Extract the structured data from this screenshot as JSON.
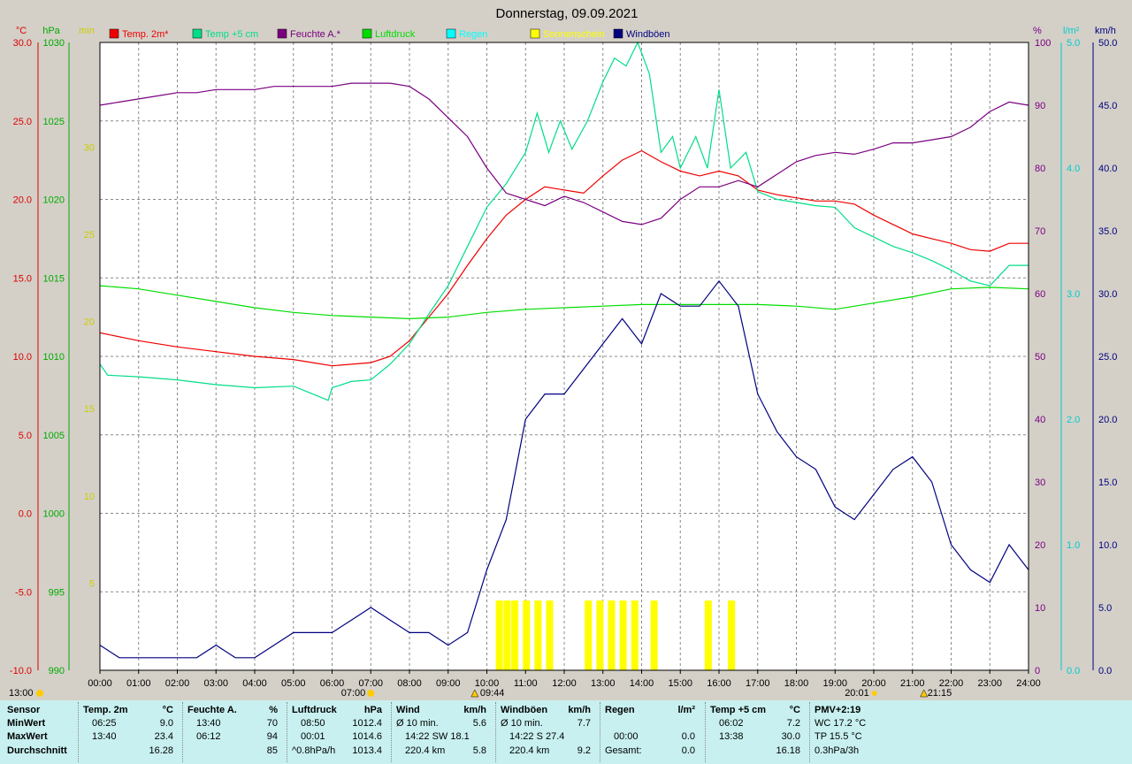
{
  "title": "Donnerstag, 09.09.2021",
  "colors": {
    "temp2m": "#ee0000",
    "temp5cm": "#00dd88",
    "humidity": "#7a0080",
    "pressure": "#00dd00",
    "rain": "#00ffff",
    "sunshine": "#ffff00",
    "gusts": "#000080",
    "background": "#ffffff",
    "grid": "#888888",
    "table_bg": "#c8f0f0"
  },
  "legend": [
    {
      "label": "Temp. 2m*",
      "color": "#ee0000"
    },
    {
      "label": "Temp +5 cm",
      "color": "#00dd88"
    },
    {
      "label": "Feuchte A.*",
      "color": "#7a0080"
    },
    {
      "label": "Luftdruck",
      "color": "#00dd00"
    },
    {
      "label": "Regen",
      "color": "#00ffff"
    },
    {
      "label": "Sonnenschein",
      "color": "#ffff00"
    },
    {
      "label": "Windböen",
      "color": "#000080"
    }
  ],
  "axes": {
    "temp": {
      "unit": "°C",
      "ticks": [
        "30.0",
        "25.0",
        "20.0",
        "15.0",
        "10.0",
        "5.0",
        "0.0",
        "-5.0",
        "-10.0"
      ],
      "range": [
        -10,
        30
      ]
    },
    "pressure": {
      "unit": "hPa",
      "ticks": [
        "1030",
        "1025",
        "1020",
        "1015",
        "1010",
        "1005",
        "1000",
        "995",
        "990"
      ],
      "range": [
        990,
        1030
      ]
    },
    "sunmin": {
      "unit": "min",
      "ticks": [
        "30",
        "25",
        "20",
        "15",
        "10",
        "5"
      ],
      "range": [
        0,
        36
      ]
    },
    "humidity": {
      "unit": "%",
      "ticks": [
        "100",
        "90",
        "80",
        "70",
        "60",
        "50",
        "40",
        "30",
        "20",
        "10",
        "0"
      ],
      "range": [
        0,
        100
      ]
    },
    "rain": {
      "unit": "l/m²",
      "ticks": [
        "5.0",
        "4.0",
        "3.0",
        "2.0",
        "1.0",
        "0.0"
      ],
      "range": [
        0,
        5
      ]
    },
    "wind": {
      "unit": "km/h",
      "ticks": [
        "50.0",
        "45.0",
        "40.0",
        "35.0",
        "30.0",
        "25.0",
        "20.0",
        "15.0",
        "10.0",
        "5.0",
        "0.0"
      ],
      "range": [
        0,
        50
      ]
    },
    "x_ticks": [
      "00:00",
      "01:00",
      "02:00",
      "03:00",
      "04:00",
      "05:00",
      "06:00",
      "07:00",
      "08:00",
      "09:00",
      "10:00",
      "11:00",
      "12:00",
      "13:00",
      "14:00",
      "15:00",
      "16:00",
      "17:00",
      "18:00",
      "19:00",
      "20:00",
      "21:00",
      "22:00",
      "23:00",
      "24:00"
    ]
  },
  "markers": {
    "sunrise": "07:00",
    "sunset": "20:01",
    "moonrise": "09:44",
    "moonset": "21:15",
    "left_time": "13:00"
  },
  "chart_data": {
    "type": "line",
    "title": "Donnerstag, 09.09.2021",
    "x_unit": "hours",
    "series": [
      {
        "name": "Temp. 2m*",
        "axis": "temp",
        "x": [
          0,
          1,
          2,
          3,
          4,
          5,
          5.5,
          6,
          6.5,
          7,
          7.5,
          8,
          8.5,
          9,
          9.5,
          10,
          10.5,
          11,
          11.5,
          12,
          12.5,
          13,
          13.5,
          14,
          14.5,
          15,
          15.5,
          16,
          16.5,
          17,
          17.5,
          18,
          18.5,
          19,
          19.5,
          20,
          20.5,
          21,
          21.5,
          22,
          22.5,
          23,
          23.5,
          24
        ],
        "y": [
          11.5,
          11,
          10.6,
          10.3,
          10,
          9.8,
          9.6,
          9.4,
          9.5,
          9.6,
          10,
          11,
          12.5,
          14,
          15.8,
          17.5,
          19,
          20,
          20.8,
          20.6,
          20.4,
          21.5,
          22.5,
          23.1,
          22.4,
          21.8,
          21.5,
          21.8,
          21.5,
          20.6,
          20.3,
          20.1,
          19.9,
          19.9,
          19.7,
          19,
          18.4,
          17.8,
          17.5,
          17.2,
          16.8,
          16.7,
          17.2,
          17.2
        ]
      },
      {
        "name": "Temp +5 cm",
        "axis": "temp",
        "x": [
          0,
          0.2,
          1,
          2,
          3,
          4,
          5,
          5.9,
          6,
          6.5,
          7,
          7.5,
          8,
          8.5,
          9,
          9.5,
          10,
          10.5,
          11,
          11.3,
          11.6,
          11.9,
          12.2,
          12.6,
          13,
          13.3,
          13.6,
          13.9,
          14.2,
          14.5,
          14.8,
          15,
          15.4,
          15.7,
          16,
          16.3,
          16.7,
          17,
          17.5,
          18,
          18.5,
          19,
          19.5,
          20,
          20.5,
          21,
          21.5,
          22,
          22.5,
          23,
          23.5,
          24
        ],
        "y": [
          9.5,
          8.8,
          8.7,
          8.5,
          8.2,
          8,
          8.1,
          7.2,
          8,
          8.4,
          8.5,
          9.5,
          10.8,
          12.7,
          14.5,
          17,
          19.5,
          21,
          23,
          25.5,
          23,
          25,
          23.2,
          25,
          27.5,
          29,
          28.5,
          30,
          28,
          23,
          24,
          22,
          24,
          22,
          27,
          22,
          23,
          20.5,
          20,
          19.8,
          19.6,
          19.5,
          18.2,
          17.6,
          17,
          16.6,
          16.1,
          15.5,
          14.8,
          14.5,
          15.8,
          15.8
        ]
      },
      {
        "name": "Feuchte A.*",
        "axis": "humidity",
        "x": [
          0,
          0.5,
          1,
          1.5,
          2,
          2.5,
          3,
          3.5,
          4,
          4.5,
          5,
          5.5,
          6,
          6.5,
          7,
          7.5,
          8,
          8.5,
          9,
          9.5,
          10,
          10.5,
          11,
          11.5,
          12,
          12.5,
          13,
          13.5,
          14,
          14.5,
          15,
          15.5,
          16,
          16.5,
          17,
          17.5,
          18,
          18.5,
          19,
          19.5,
          20,
          20.5,
          21,
          21.5,
          22,
          22.5,
          23,
          23.5,
          24
        ],
        "y": [
          90,
          90.5,
          91,
          91.5,
          92,
          92,
          92.5,
          92.5,
          92.5,
          93,
          93,
          93,
          93,
          93.5,
          93.5,
          93.5,
          93,
          91,
          88,
          85,
          80,
          76,
          75,
          74,
          75.5,
          74.5,
          73,
          71.5,
          71,
          72,
          75,
          77,
          77,
          78,
          77,
          79,
          81,
          82,
          82.5,
          82.2,
          83,
          84,
          84,
          84.5,
          85,
          86.5,
          89,
          90.5,
          90
        ]
      },
      {
        "name": "Luftdruck",
        "axis": "pressure",
        "x": [
          0,
          1,
          2,
          3,
          4,
          5,
          6,
          7,
          8,
          9,
          10,
          11,
          12,
          13,
          14,
          15,
          16,
          17,
          18,
          19,
          20,
          21,
          22,
          23,
          24
        ],
        "y": [
          1014.5,
          1014.3,
          1013.9,
          1013.5,
          1013.1,
          1012.8,
          1012.6,
          1012.5,
          1012.4,
          1012.5,
          1012.8,
          1013,
          1013.1,
          1013.2,
          1013.3,
          1013.3,
          1013.3,
          1013.3,
          1013.2,
          1013,
          1013.4,
          1013.8,
          1014.3,
          1014.4,
          1014.3
        ]
      },
      {
        "name": "Windböen",
        "axis": "wind",
        "x": [
          0,
          0.5,
          1,
          1.5,
          2,
          2.5,
          3,
          3.5,
          4,
          4.5,
          5,
          5.5,
          6,
          6.5,
          7,
          7.5,
          8,
          8.5,
          9,
          9.5,
          10,
          10.5,
          11,
          11.5,
          12,
          12.5,
          13,
          13.5,
          14,
          14.5,
          15,
          15.5,
          16,
          16.5,
          17,
          17.5,
          18,
          18.5,
          19,
          19.5,
          20,
          20.5,
          21,
          21.5,
          22,
          22.5,
          23,
          23.5,
          24
        ],
        "y": [
          2,
          1,
          1,
          1,
          1,
          1,
          2,
          1,
          1,
          2,
          3,
          3,
          3,
          4,
          5,
          4,
          3,
          3,
          2,
          3,
          8,
          12,
          20,
          22,
          22,
          24,
          26,
          28,
          26,
          30,
          29,
          29,
          31,
          29,
          22,
          19,
          17,
          16,
          13,
          12,
          14,
          16,
          17,
          15,
          10,
          8,
          7,
          10,
          8
        ]
      }
    ],
    "sunshine_minutes": {
      "axis": "sunmin",
      "x": [
        10.3,
        10.5,
        10.7,
        11,
        11.3,
        11.6,
        12.6,
        12.9,
        13.2,
        13.5,
        13.8,
        14.3,
        15.7,
        16.3
      ],
      "y": [
        4,
        4,
        4,
        4,
        4,
        4,
        4,
        4,
        4,
        4,
        4,
        4,
        4,
        4
      ]
    },
    "rain": {
      "axis": "rain",
      "values": [
        0
      ]
    }
  },
  "table": {
    "rows": [
      "Sensor",
      "MinWert",
      "MaxWert",
      "Durchschnitt"
    ],
    "columns": [
      {
        "head": "Temp. 2m",
        "unit": "°C",
        "cells": [
          [
            "06:25",
            "9.0"
          ],
          [
            "13:40",
            "23.4"
          ],
          [
            "",
            "16.28"
          ]
        ]
      },
      {
        "head": "Feuchte A.",
        "unit": "%",
        "cells": [
          [
            "13:40",
            "70"
          ],
          [
            "06:12",
            "94"
          ],
          [
            "",
            "85"
          ]
        ]
      },
      {
        "head": "Luftdruck",
        "unit": "hPa",
        "cells": [
          [
            "08:50",
            "1012.4"
          ],
          [
            "00:01",
            "1014.6"
          ],
          [
            "^0.8hPa/h",
            "1013.4"
          ]
        ]
      },
      {
        "head": "Wind",
        "unit": "km/h",
        "cells": [
          [
            "Ø 10 min.",
            "5.6"
          ],
          [
            "14:22    SW 18.1",
            ""
          ],
          [
            "220.4 km",
            "5.8"
          ]
        ]
      },
      {
        "head": "Windböen",
        "unit": "km/h",
        "cells": [
          [
            "Ø 10 min.",
            "7.7"
          ],
          [
            "14:22      S 27.4",
            ""
          ],
          [
            "220.4 km",
            "9.2"
          ]
        ]
      },
      {
        "head": "Regen",
        "unit": "l/m²",
        "cells": [
          [
            "",
            ""
          ],
          [
            "00:00",
            "0.0"
          ],
          [
            "Gesamt:",
            "0.0"
          ]
        ]
      },
      {
        "head": "Temp +5 cm",
        "unit": "°C",
        "cells": [
          [
            "06:02",
            "7.2"
          ],
          [
            "13:38",
            "30.0"
          ],
          [
            "",
            "16.18"
          ]
        ]
      },
      {
        "head": "PMV+2:19",
        "unit": "",
        "cells": [
          [
            "WC 17.2 °C",
            ""
          ],
          [
            "TP 15.5 °C",
            ""
          ],
          [
            "0.3hPa/3h",
            ""
          ]
        ]
      }
    ]
  }
}
